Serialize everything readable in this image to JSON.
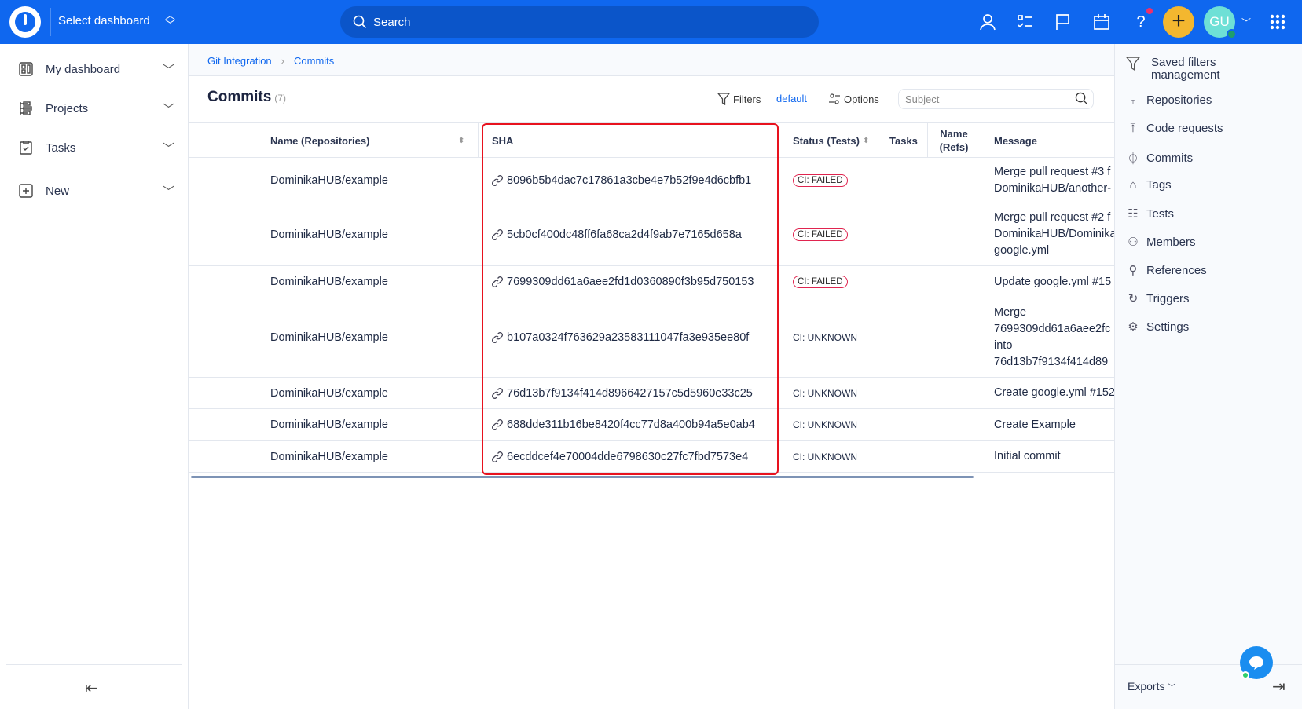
{
  "topbar": {
    "dashboard_select": "Select dashboard",
    "search_placeholder": "Search",
    "avatar_initials": "GU",
    "brand_color": "#0f67ef"
  },
  "sidebar": {
    "items": [
      {
        "label": "My dashboard",
        "icon": "dashboard-icon"
      },
      {
        "label": "Projects",
        "icon": "projects-icon"
      },
      {
        "label": "Tasks",
        "icon": "tasks-icon"
      },
      {
        "label": "New",
        "icon": "plus-square-icon"
      }
    ]
  },
  "breadcrumb": {
    "items": [
      "Git Integration",
      "Commits"
    ]
  },
  "page": {
    "title": "Commits",
    "count": "(7)",
    "filters_label": "Filters",
    "filter_name": "default",
    "options_label": "Options",
    "subject_placeholder": "Subject"
  },
  "table": {
    "columns": [
      "Name (Repositories)",
      "SHA",
      "Status (Tests)",
      "Tasks",
      "Name (Refs)",
      "Message"
    ],
    "rows": [
      {
        "repo": "DominikaHUB/example",
        "sha": "8096b5b4dac7c17861a3cbe4e7b52f9e4d6cbfb1",
        "status": "CI: FAILED",
        "message": [
          "Merge pull request #3 f",
          "DominikaHUB/another-"
        ]
      },
      {
        "repo": "DominikaHUB/example",
        "sha": "5cb0cf400dc48ff6fa68ca2d4f9ab7e7165d658a",
        "status": "CI: FAILED",
        "message": [
          "Merge pull request #2 f",
          "DominikaHUB/Dominika",
          "google.yml"
        ]
      },
      {
        "repo": "DominikaHUB/example",
        "sha": "7699309dd61a6aee2fd1d0360890f3b95d750153",
        "status": "CI: FAILED",
        "message": [
          "Update google.yml #15"
        ]
      },
      {
        "repo": "DominikaHUB/example",
        "sha": "b107a0324f763629a23583111047fa3e935ee80f",
        "status": "CI: UNKNOWN",
        "message": [
          "Merge",
          "7699309dd61a6aee2fc",
          "into",
          "76d13b7f9134f414d89"
        ]
      },
      {
        "repo": "DominikaHUB/example",
        "sha": "76d13b7f9134f414d8966427157c5d5960e33c25",
        "status": "CI: UNKNOWN",
        "message": [
          "Create google.yml #152"
        ]
      },
      {
        "repo": "DominikaHUB/example",
        "sha": "688dde311b16be8420f4cc77d8a400b94a5e0ab4",
        "status": "CI: UNKNOWN",
        "message": [
          "Create Example"
        ]
      },
      {
        "repo": "DominikaHUB/example",
        "sha": "6ecddcef4e70004dde6798630c27fc7fbd7573e4",
        "status": "CI: UNKNOWN",
        "message": [
          "Initial commit"
        ]
      }
    ]
  },
  "right_panel": {
    "items": [
      "Saved filters management",
      "Repositories",
      "Code requests",
      "Commits",
      "Tags",
      "Tests",
      "Members",
      "References",
      "Triggers",
      "Settings"
    ],
    "exports_label": "Exports"
  },
  "colors": {
    "failed_border": "#e0244f",
    "highlight_box": "#e8121e",
    "plus_button": "#f3b72f",
    "avatar": "#6ee0d6"
  }
}
